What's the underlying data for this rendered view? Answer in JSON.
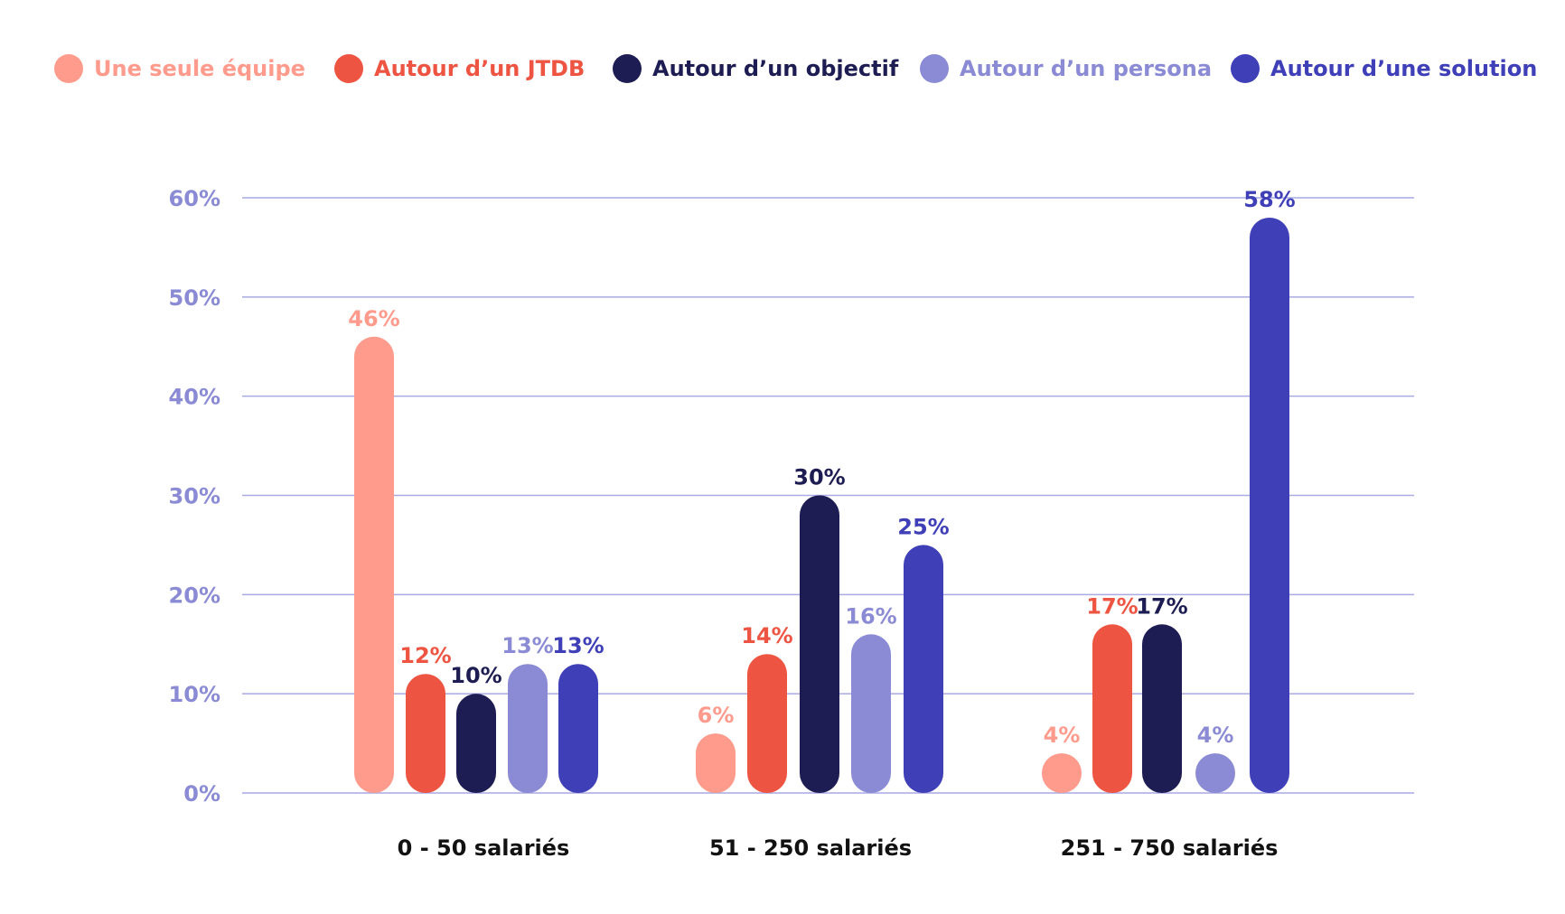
{
  "chart_data": {
    "type": "bar",
    "categories": [
      "0 - 50 salariés",
      "51 - 250 salariés",
      "251 - 750 salariés"
    ],
    "series": [
      {
        "name": "Une seule équipe",
        "color": "#FF9B8C",
        "values": [
          46,
          6,
          4
        ]
      },
      {
        "name": "Autour d’un JTDB",
        "color": "#EE5442",
        "values": [
          12,
          14,
          17
        ]
      },
      {
        "name": "Autour d’un objectif",
        "color": "#1E1D53",
        "values": [
          10,
          30,
          17
        ]
      },
      {
        "name": "Autour d’un persona",
        "color": "#8A8BD4",
        "values": [
          13,
          16,
          4
        ]
      },
      {
        "name": "Autour d’une solution",
        "color": "#3F3FB8",
        "values": [
          13,
          25,
          58
        ]
      }
    ],
    "value_suffix": "%",
    "y_ticks": [
      "0%",
      "10%",
      "20%",
      "30%",
      "40%",
      "50%",
      "60%"
    ],
    "ylim": [
      0,
      60
    ],
    "grid": true,
    "legend_position": "top",
    "axis_label_color": "#8A8BD4",
    "grid_color": "#A9A9E3",
    "category_label_color": "#111111"
  }
}
